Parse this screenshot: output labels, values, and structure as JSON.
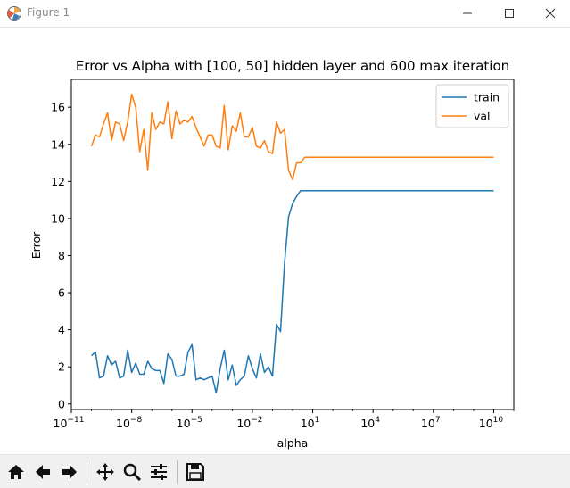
{
  "window": {
    "title": "Figure 1"
  },
  "chart_data": {
    "type": "line",
    "title": "Error vs Alpha with [100, 50] hidden layer and 600 max iteration",
    "xlabel": "alpha",
    "ylabel": "Error",
    "xscale": "log",
    "xlim": [
      1e-11,
      100000000000.0
    ],
    "ylim": [
      -0.3,
      17.5
    ],
    "yticks": [
      0,
      2,
      4,
      6,
      8,
      10,
      12,
      14,
      16
    ],
    "xtick_exponents": [
      -11,
      -8,
      -5,
      -2,
      1,
      4,
      7,
      10
    ],
    "xtick_labels": [
      {
        "base": "10",
        "exp": "−11"
      },
      {
        "base": "10",
        "exp": "−8"
      },
      {
        "base": "10",
        "exp": "−5"
      },
      {
        "base": "10",
        "exp": "−2"
      },
      {
        "base": "10",
        "exp": "1"
      },
      {
        "base": "10",
        "exp": "4"
      },
      {
        "base": "10",
        "exp": "7"
      },
      {
        "base": "10",
        "exp": "10"
      }
    ],
    "grid": false,
    "legend_position": "top-right",
    "series": [
      {
        "name": "train",
        "color": "#1f77b4",
        "log10_alpha_start": -10,
        "log10_alpha_step": 0.2,
        "values": [
          2.6,
          2.8,
          1.4,
          1.5,
          2.6,
          2.1,
          2.3,
          1.4,
          1.5,
          2.9,
          1.7,
          2.2,
          1.6,
          1.6,
          2.3,
          1.9,
          1.8,
          1.8,
          1.1,
          2.7,
          2.4,
          1.5,
          1.5,
          1.6,
          2.8,
          3.2,
          1.3,
          1.4,
          1.3,
          1.4,
          1.5,
          0.6,
          1.9,
          2.9,
          1.3,
          2.1,
          1.0,
          1.3,
          1.5,
          2.6,
          1.9,
          1.4,
          2.7,
          1.7,
          2.0,
          1.5,
          4.3,
          3.9,
          7.6,
          10.1,
          10.8,
          11.2,
          11.5,
          11.5,
          11.5,
          11.5,
          11.5,
          11.5,
          11.5,
          11.5,
          11.5,
          11.5,
          11.5,
          11.5,
          11.5,
          11.5,
          11.5,
          11.5,
          11.5,
          11.5,
          11.5,
          11.5,
          11.5,
          11.5,
          11.5,
          11.5,
          11.5,
          11.5,
          11.5,
          11.5,
          11.5,
          11.5,
          11.5,
          11.5,
          11.5,
          11.5,
          11.5,
          11.5,
          11.5,
          11.5,
          11.5,
          11.5,
          11.5,
          11.5,
          11.5,
          11.5,
          11.5,
          11.5,
          11.5,
          11.5,
          11.5
        ]
      },
      {
        "name": "val",
        "color": "#ff7f0e",
        "log10_alpha_start": -10,
        "log10_alpha_step": 0.2,
        "values": [
          13.9,
          14.5,
          14.4,
          15.1,
          15.7,
          14.2,
          15.2,
          15.1,
          14.2,
          15.2,
          16.7,
          16.0,
          13.6,
          14.8,
          12.6,
          15.7,
          14.8,
          15.2,
          15.1,
          16.3,
          14.3,
          15.8,
          15.1,
          15.3,
          15.2,
          15.5,
          14.9,
          14.4,
          13.9,
          14.5,
          14.5,
          13.9,
          13.8,
          16.1,
          13.7,
          15.0,
          14.7,
          15.7,
          14.4,
          14.4,
          14.9,
          13.9,
          13.8,
          14.2,
          13.6,
          13.5,
          15.2,
          14.6,
          14.8,
          12.6,
          12.1,
          13.0,
          13.0,
          13.3,
          13.3,
          13.3,
          13.3,
          13.3,
          13.3,
          13.3,
          13.3,
          13.3,
          13.3,
          13.3,
          13.3,
          13.3,
          13.3,
          13.3,
          13.3,
          13.3,
          13.3,
          13.3,
          13.3,
          13.3,
          13.3,
          13.3,
          13.3,
          13.3,
          13.3,
          13.3,
          13.3,
          13.3,
          13.3,
          13.3,
          13.3,
          13.3,
          13.3,
          13.3,
          13.3,
          13.3,
          13.3,
          13.3,
          13.3,
          13.3,
          13.3,
          13.3,
          13.3,
          13.3,
          13.3,
          13.3,
          13.3
        ]
      }
    ]
  }
}
